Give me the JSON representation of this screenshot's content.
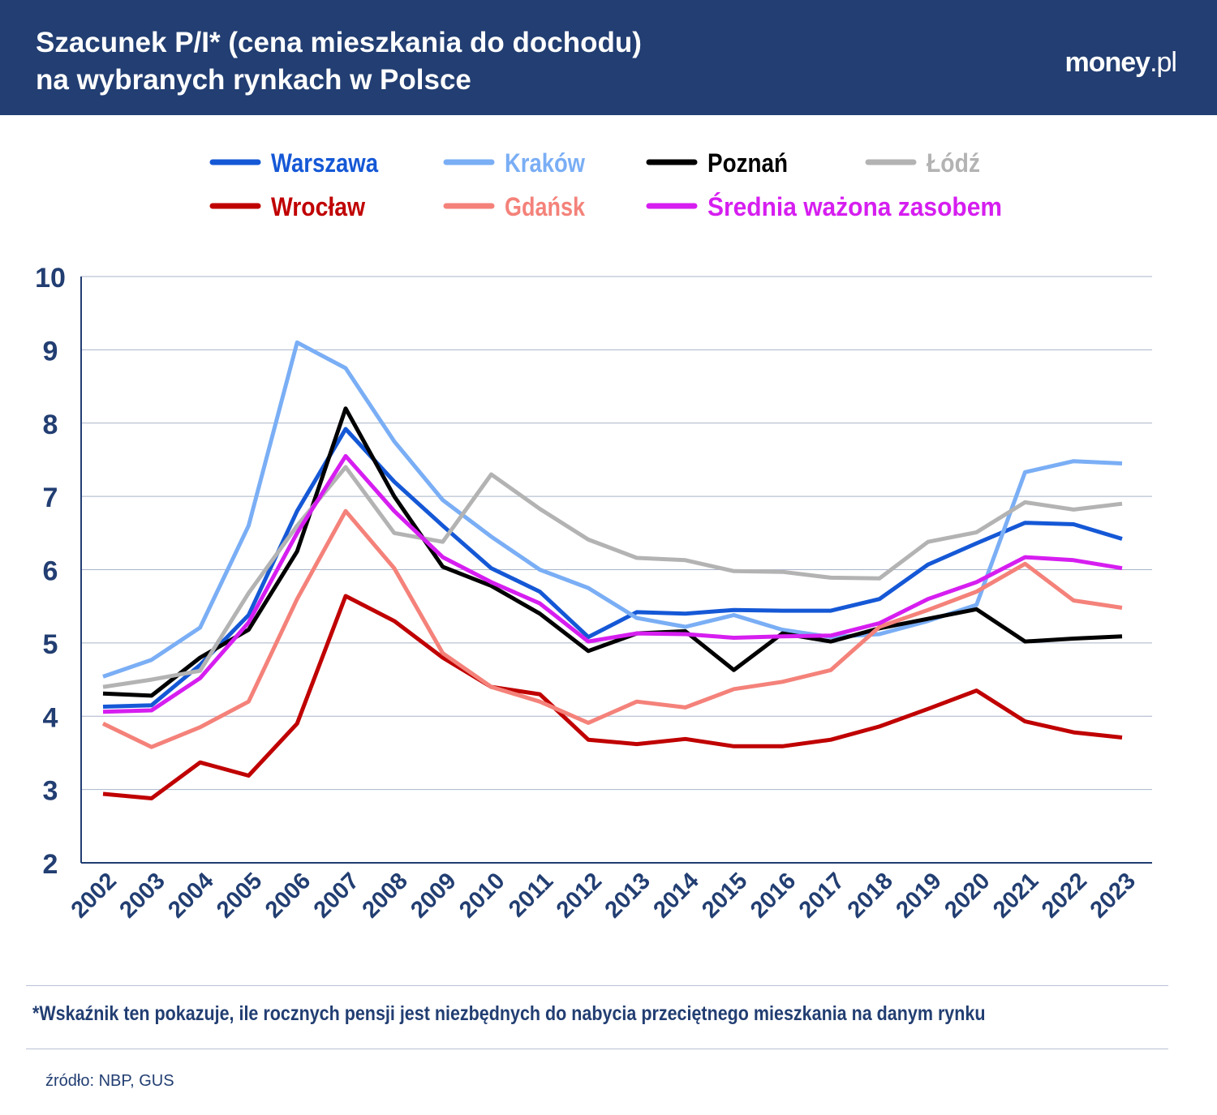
{
  "header": {
    "title_line1": "Szacunek P/I* (cena mieszkania do dochodu)",
    "title_line2": "na wybranych rynkach w Polsce",
    "logo": "money.pl"
  },
  "footnote": "*Wskaźnik ten pokazuje, ile rocznych pensji jest niezbędnych do nabycia przeciętnego mieszkania na danym rynku",
  "source": "źródło: NBP, GUS",
  "chart_data": {
    "type": "line",
    "title": "Szacunek P/I* (cena mieszkania do dochodu) na wybranych rynkach w Polsce",
    "xlabel": "",
    "ylabel": "",
    "ylim": [
      2,
      10
    ],
    "yticks": [
      "2",
      "3",
      "4",
      "5",
      "6",
      "7",
      "8",
      "9",
      "10"
    ],
    "grid": true,
    "legend": "top",
    "x": [
      "2002",
      "2003",
      "2004",
      "2005",
      "2006",
      "2007",
      "2008",
      "2009",
      "2010",
      "2011",
      "2012",
      "2013",
      "2014",
      "2015",
      "2016",
      "2017",
      "2018",
      "2019",
      "2020",
      "2021",
      "2022",
      "2023"
    ],
    "series": [
      {
        "name": "Warszawa",
        "color": "#1558d6",
        "values": [
          4.13,
          4.15,
          4.7,
          5.38,
          6.8,
          7.92,
          7.2,
          6.6,
          6.02,
          5.7,
          5.08,
          5.42,
          5.4,
          5.45,
          5.44,
          5.44,
          5.6,
          6.07,
          6.36,
          6.64,
          6.62,
          6.42
        ]
      },
      {
        "name": "Kraków",
        "color": "#7aaef5",
        "values": [
          4.54,
          4.77,
          5.21,
          6.6,
          9.1,
          8.75,
          7.75,
          6.95,
          6.45,
          6.0,
          5.75,
          5.34,
          5.22,
          5.38,
          5.18,
          5.08,
          5.12,
          5.3,
          5.52,
          7.33,
          7.48,
          7.45
        ]
      },
      {
        "name": "Poznań",
        "color": "#000000",
        "values": [
          4.31,
          4.28,
          4.8,
          5.18,
          6.25,
          8.2,
          7.0,
          6.04,
          5.78,
          5.4,
          4.89,
          5.13,
          5.16,
          4.63,
          5.13,
          5.02,
          5.2,
          5.33,
          5.46,
          5.02,
          5.06,
          5.09
        ]
      },
      {
        "name": "Łódź",
        "color": "#b3b3b3",
        "values": [
          4.4,
          4.5,
          4.62,
          5.68,
          6.6,
          7.4,
          6.5,
          6.38,
          7.3,
          6.83,
          6.41,
          6.16,
          6.13,
          5.98,
          5.97,
          5.89,
          5.88,
          6.38,
          6.51,
          6.92,
          6.82,
          6.9
        ]
      },
      {
        "name": "Wrocław",
        "color": "#c00000",
        "values": [
          2.94,
          2.88,
          3.37,
          3.19,
          3.9,
          5.64,
          5.3,
          4.8,
          4.4,
          4.3,
          3.68,
          3.62,
          3.69,
          3.59,
          3.59,
          3.68,
          3.86,
          4.1,
          4.35,
          3.93,
          3.78,
          3.71
        ]
      },
      {
        "name": "Gdańsk",
        "color": "#f4827a",
        "values": [
          3.9,
          3.58,
          3.85,
          4.2,
          5.6,
          6.8,
          6.02,
          4.86,
          4.4,
          4.2,
          3.91,
          4.2,
          4.12,
          4.37,
          4.47,
          4.63,
          5.22,
          5.45,
          5.7,
          6.08,
          5.58,
          5.48
        ]
      },
      {
        "name": "Średnia ważona zasobem",
        "color": "#d61ef0",
        "values": [
          4.06,
          4.08,
          4.52,
          5.28,
          6.5,
          7.55,
          6.8,
          6.17,
          5.83,
          5.54,
          5.02,
          5.13,
          5.12,
          5.07,
          5.09,
          5.1,
          5.27,
          5.6,
          5.83,
          6.17,
          6.13,
          6.02
        ]
      }
    ]
  }
}
